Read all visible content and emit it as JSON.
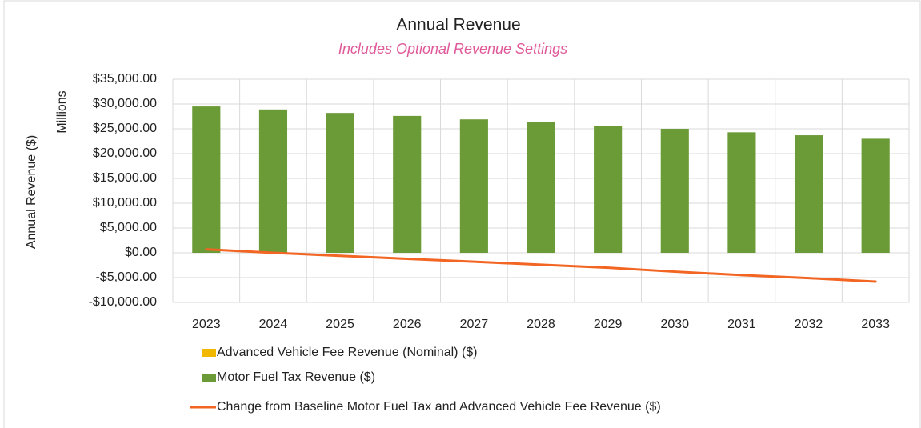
{
  "chart_data": {
    "type": "bar",
    "title": "Annual Revenue",
    "subtitle": "Includes Optional Revenue Settings",
    "y_label": "Annual Revenue ($)",
    "y_unit": "Millions",
    "categories": [
      "2023",
      "2024",
      "2025",
      "2026",
      "2027",
      "2028",
      "2029",
      "2030",
      "2031",
      "2032",
      "2033"
    ],
    "series": [
      {
        "name": "Advanced Vehicle Fee Revenue (Nominal) ($)",
        "color": "#f2b800",
        "type": "bar",
        "values": [
          0,
          0,
          0,
          0,
          0,
          0,
          0,
          0,
          0,
          0,
          0
        ]
      },
      {
        "name": "Motor Fuel Tax Revenue ($)",
        "color": "#6b9b37",
        "type": "bar",
        "values": [
          29500,
          28900,
          28200,
          27600,
          26900,
          26300,
          25600,
          25000,
          24300,
          23700,
          23000
        ]
      },
      {
        "name": "Change from Baseline Motor Fuel Tax and Advanced Vehicle Fee Revenue ($)",
        "color": "#f26522",
        "type": "line",
        "values": [
          700,
          0,
          -600,
          -1200,
          -1800,
          -2400,
          -3000,
          -3800,
          -4500,
          -5100,
          -5800
        ]
      }
    ],
    "stacked": true,
    "ylim": [
      -10000,
      35000
    ],
    "yticks": [
      {
        "value": -10000,
        "label": "-$10,000.00"
      },
      {
        "value": -5000,
        "label": "-$5,000.00"
      },
      {
        "value": 0,
        "label": "$0.00"
      },
      {
        "value": 5000,
        "label": "$5,000.00"
      },
      {
        "value": 10000,
        "label": "$10,000.00"
      },
      {
        "value": 15000,
        "label": "$15,000.00"
      },
      {
        "value": 20000,
        "label": "$20,000.00"
      },
      {
        "value": 25000,
        "label": "$25,000.00"
      },
      {
        "value": 30000,
        "label": "$30,000.00"
      },
      {
        "value": 35000,
        "label": "$35,000.00"
      }
    ],
    "grid": true,
    "legend": "bottom"
  }
}
